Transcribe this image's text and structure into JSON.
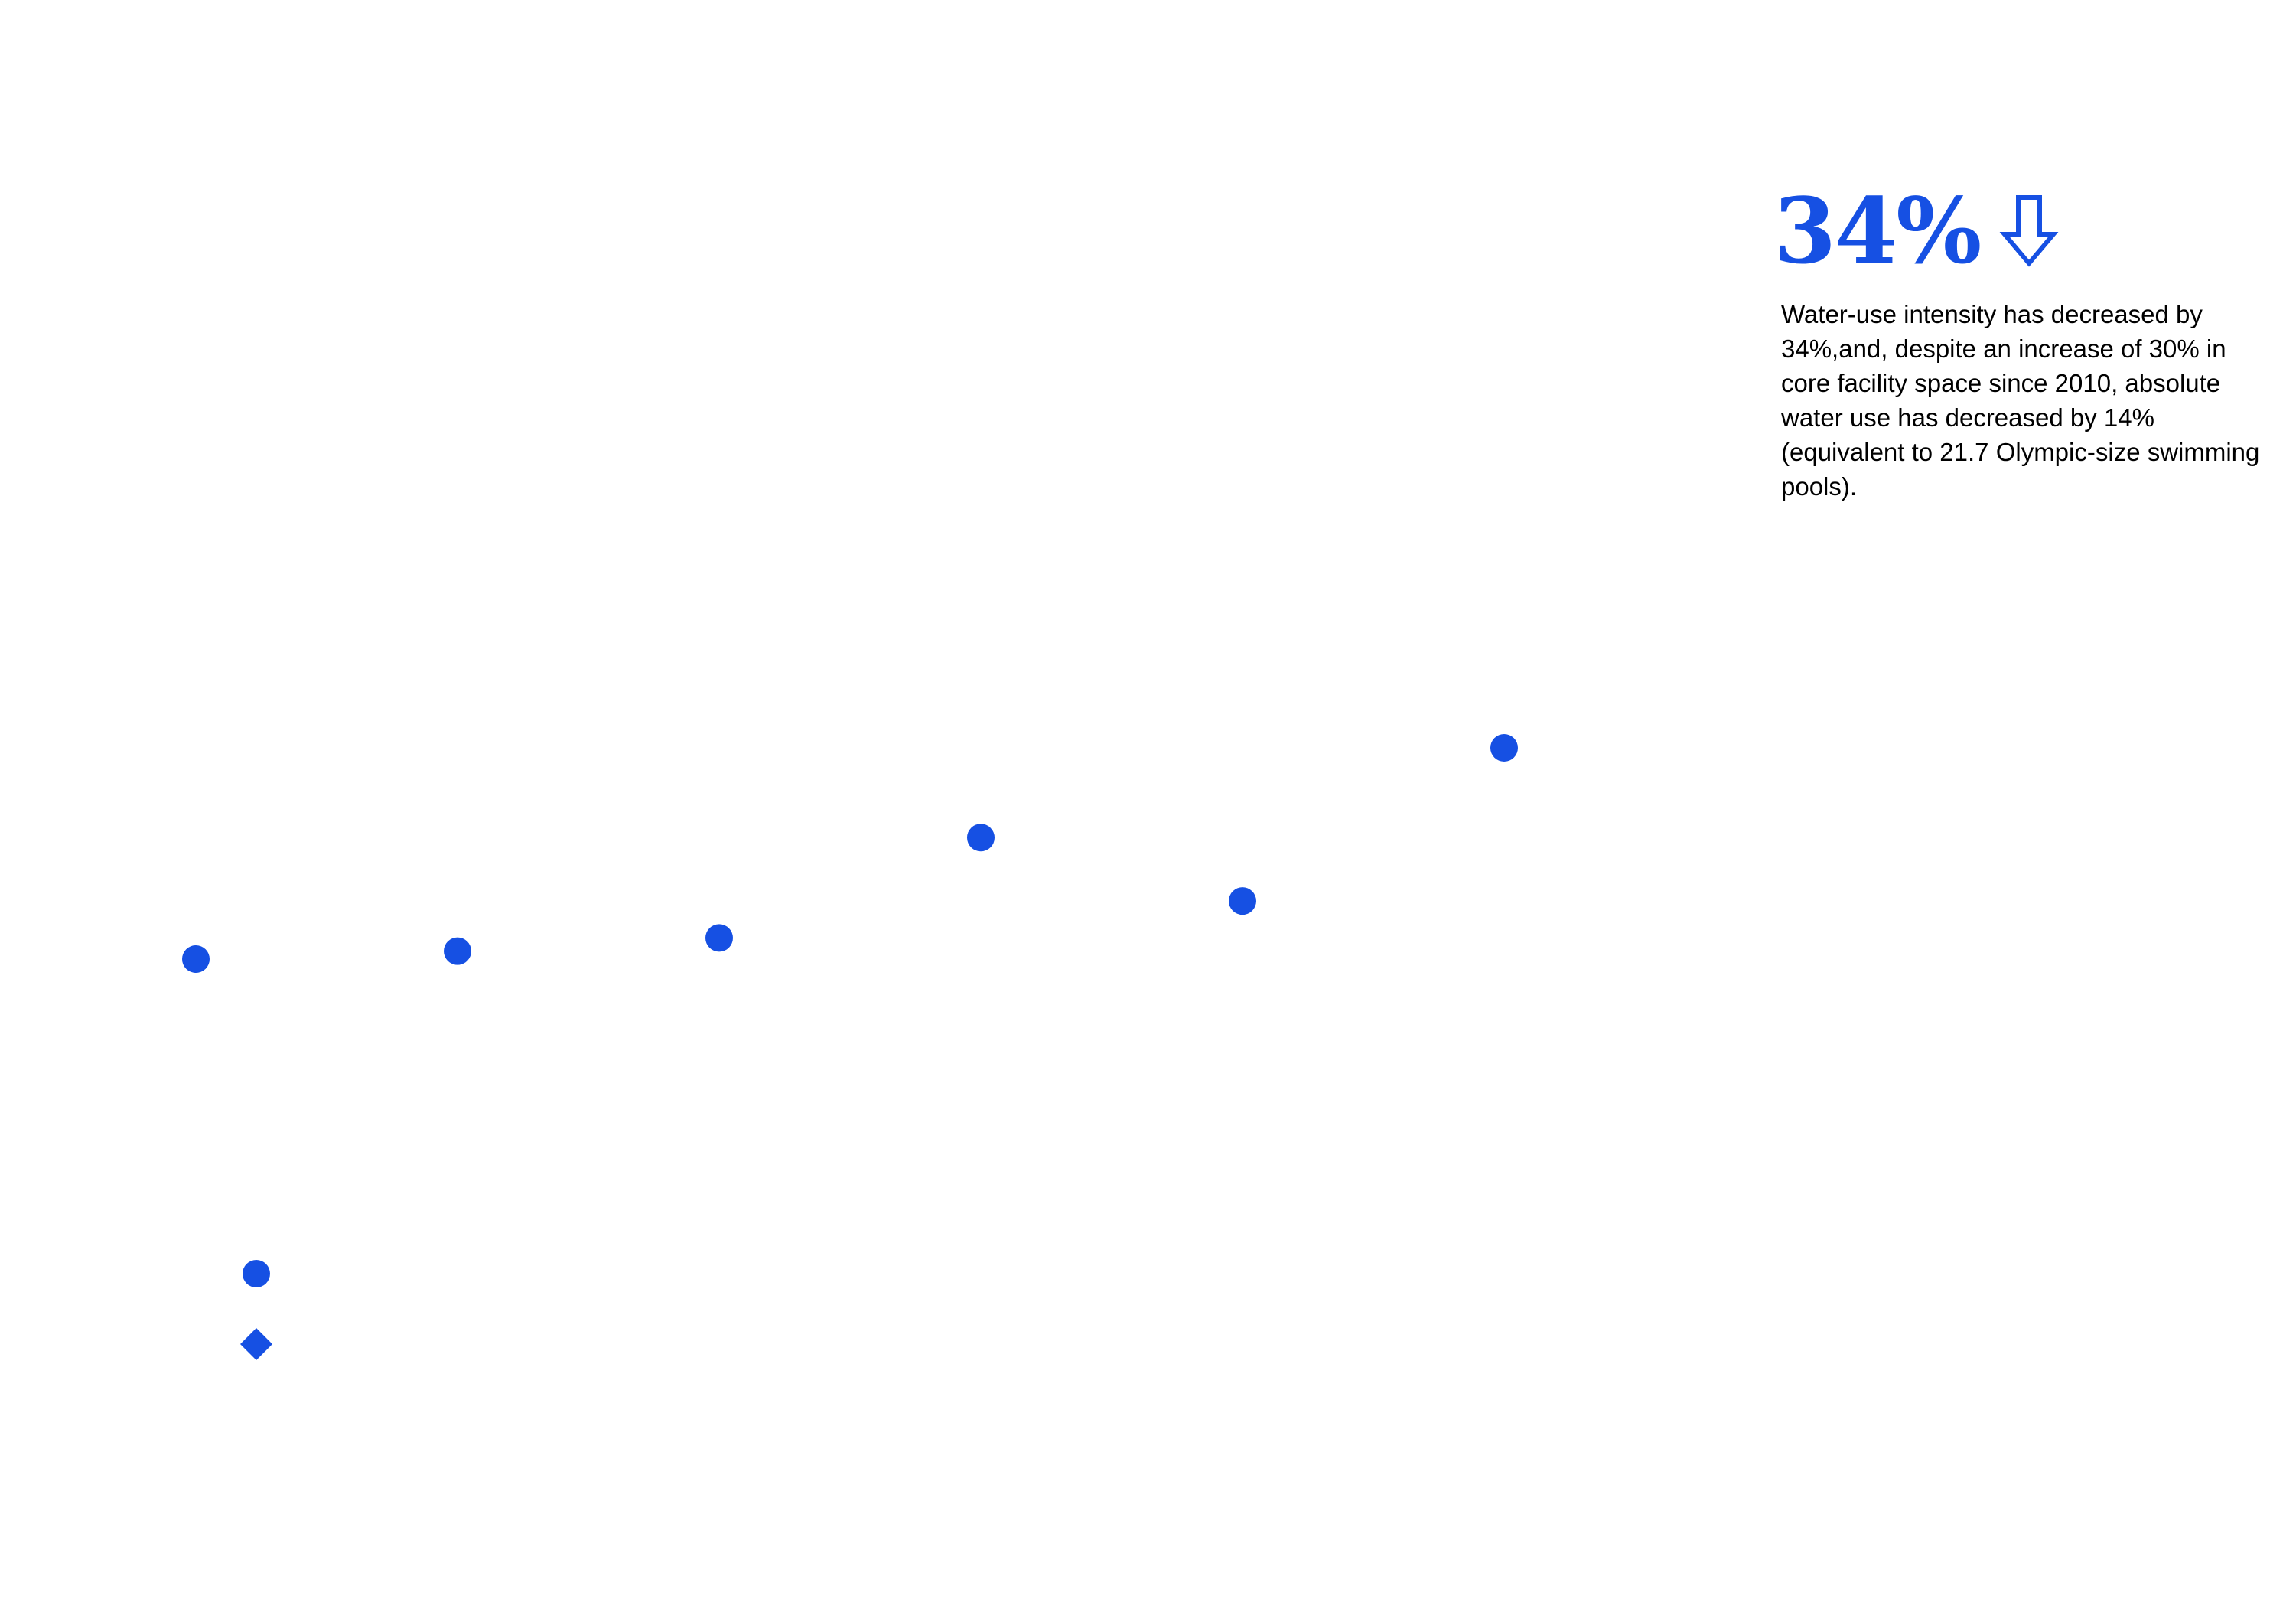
{
  "colors": {
    "accent": "#1650e3",
    "text": "#000000",
    "background": "#ffffff"
  },
  "stat": {
    "value": "34%",
    "direction_icon": "arrow-down-outline-icon",
    "description": "Water-use intensity has decreased by 34%,and, despite an increase of 30% in core facility space since 2010, absolute water use has decreased by 14% (equivalent to 21.7 Olympic-size swimming pools)."
  },
  "chart_data": {
    "type": "scatter",
    "title": "",
    "xlabel": "",
    "ylabel": "",
    "grid": false,
    "series": [
      {
        "marker": "circle",
        "color": "#1650e3",
        "points": [
          {
            "x": 1,
            "y": 1
          },
          {
            "x": 2,
            "y": 1.03
          },
          {
            "x": 3,
            "y": 1.08
          },
          {
            "x": 4,
            "y": 1.46
          },
          {
            "x": 5,
            "y": 1.22
          },
          {
            "x": 6,
            "y": 1.8
          }
        ]
      }
    ],
    "legend": {
      "placement": "bottom-left",
      "items": [
        {
          "marker": "circle",
          "color": "#1650e3",
          "label": ""
        },
        {
          "marker": "diamond",
          "color": "#1650e3",
          "label": ""
        }
      ]
    }
  }
}
